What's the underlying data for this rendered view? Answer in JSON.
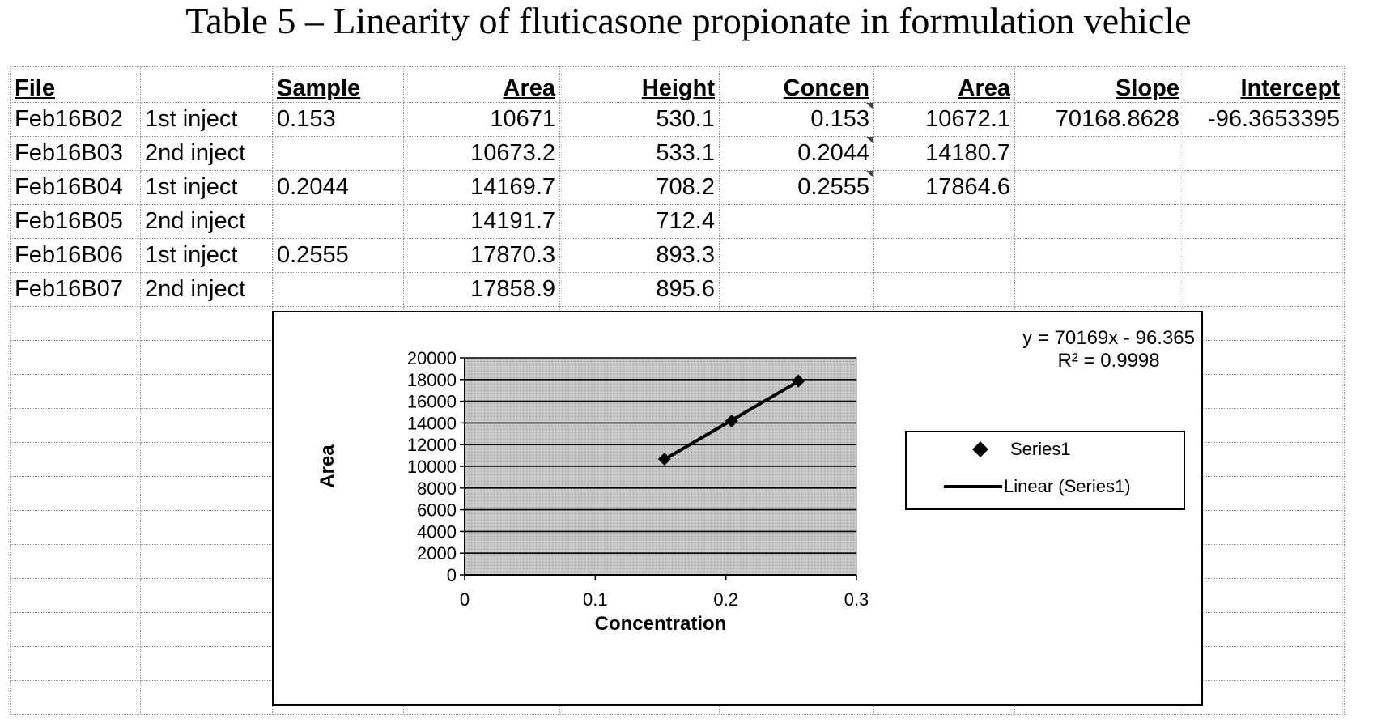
{
  "title": "Table 5 – Linearity of fluticasone propionate in formulation vehicle",
  "table": {
    "headers": [
      "File",
      "",
      "Sample",
      "Area",
      "Height",
      "Concen",
      "Area",
      "Slope",
      "Intercept"
    ],
    "rows": [
      [
        "Feb16B02",
        "1st inject",
        "0.153",
        "10671",
        "530.1",
        "0.153",
        "10672.1",
        "70168.8628",
        "-96.3653395"
      ],
      [
        "Feb16B03",
        "2nd inject",
        "",
        "10673.2",
        "533.1",
        "0.2044",
        "14180.7",
        "",
        ""
      ],
      [
        "Feb16B04",
        "1st inject",
        "0.2044",
        "14169.7",
        "708.2",
        "0.2555",
        "17864.6",
        "",
        ""
      ],
      [
        "Feb16B05",
        "2nd inject",
        "",
        "14191.7",
        "712.4",
        "",
        "",
        "",
        ""
      ],
      [
        "Feb16B06",
        "1st inject",
        "0.2555",
        "17870.3",
        "893.3",
        "",
        "",
        "",
        ""
      ],
      [
        "Feb16B07",
        "2nd inject",
        "",
        "17858.9",
        "895.6",
        "",
        "",
        "",
        ""
      ]
    ]
  },
  "chart_data": {
    "type": "scatter",
    "title": "",
    "xlabel": "Concentration",
    "ylabel": "Area",
    "xlim": [
      0,
      0.3
    ],
    "ylim": [
      0,
      20000
    ],
    "x_ticks": [
      "0",
      "0.1",
      "0.2",
      "0.3"
    ],
    "y_ticks": [
      "0",
      "2000",
      "4000",
      "6000",
      "8000",
      "10000",
      "12000",
      "14000",
      "16000",
      "18000",
      "20000"
    ],
    "grid": true,
    "legend_position": "right",
    "series": [
      {
        "name": "Series1",
        "x": [
          0.153,
          0.2044,
          0.2555
        ],
        "y": [
          10672.1,
          14180.7,
          17864.6
        ]
      }
    ],
    "trendline": {
      "name": "Linear (Series1)",
      "slope": 70169,
      "intercept": -96.365
    },
    "equation": "y = 70169x - 96.365",
    "r_squared": "R² = 0.9998",
    "colors": {
      "plot_area": "#c8c8c8",
      "line": "#000000"
    }
  }
}
